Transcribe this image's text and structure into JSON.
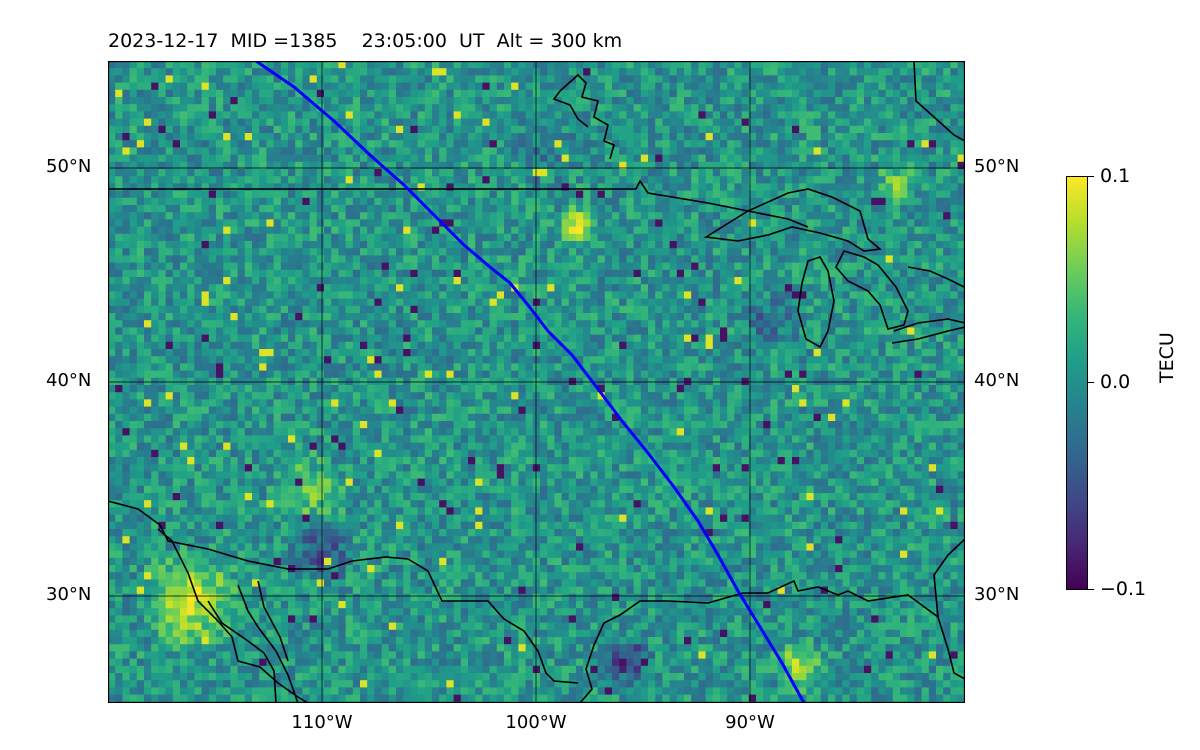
{
  "title": "2023-12-17  MID =1385    23:05:00  UT  Alt = 300 km",
  "map": {
    "lon_range": [
      -120,
      -80
    ],
    "lat_range": [
      25,
      55
    ],
    "track_color": "#0000ff",
    "coastline_color": "#000000",
    "grid": true
  },
  "lat_labels": [
    "50°N",
    "40°N",
    "30°N"
  ],
  "lon_labels": [
    "110°W",
    "100°W",
    "90°W"
  ],
  "colorbar": {
    "label": "TECU",
    "ticks": [
      "0.1",
      "0.0",
      "−0.1"
    ],
    "colormap": "viridis",
    "range": [
      -0.1,
      0.1
    ]
  }
}
